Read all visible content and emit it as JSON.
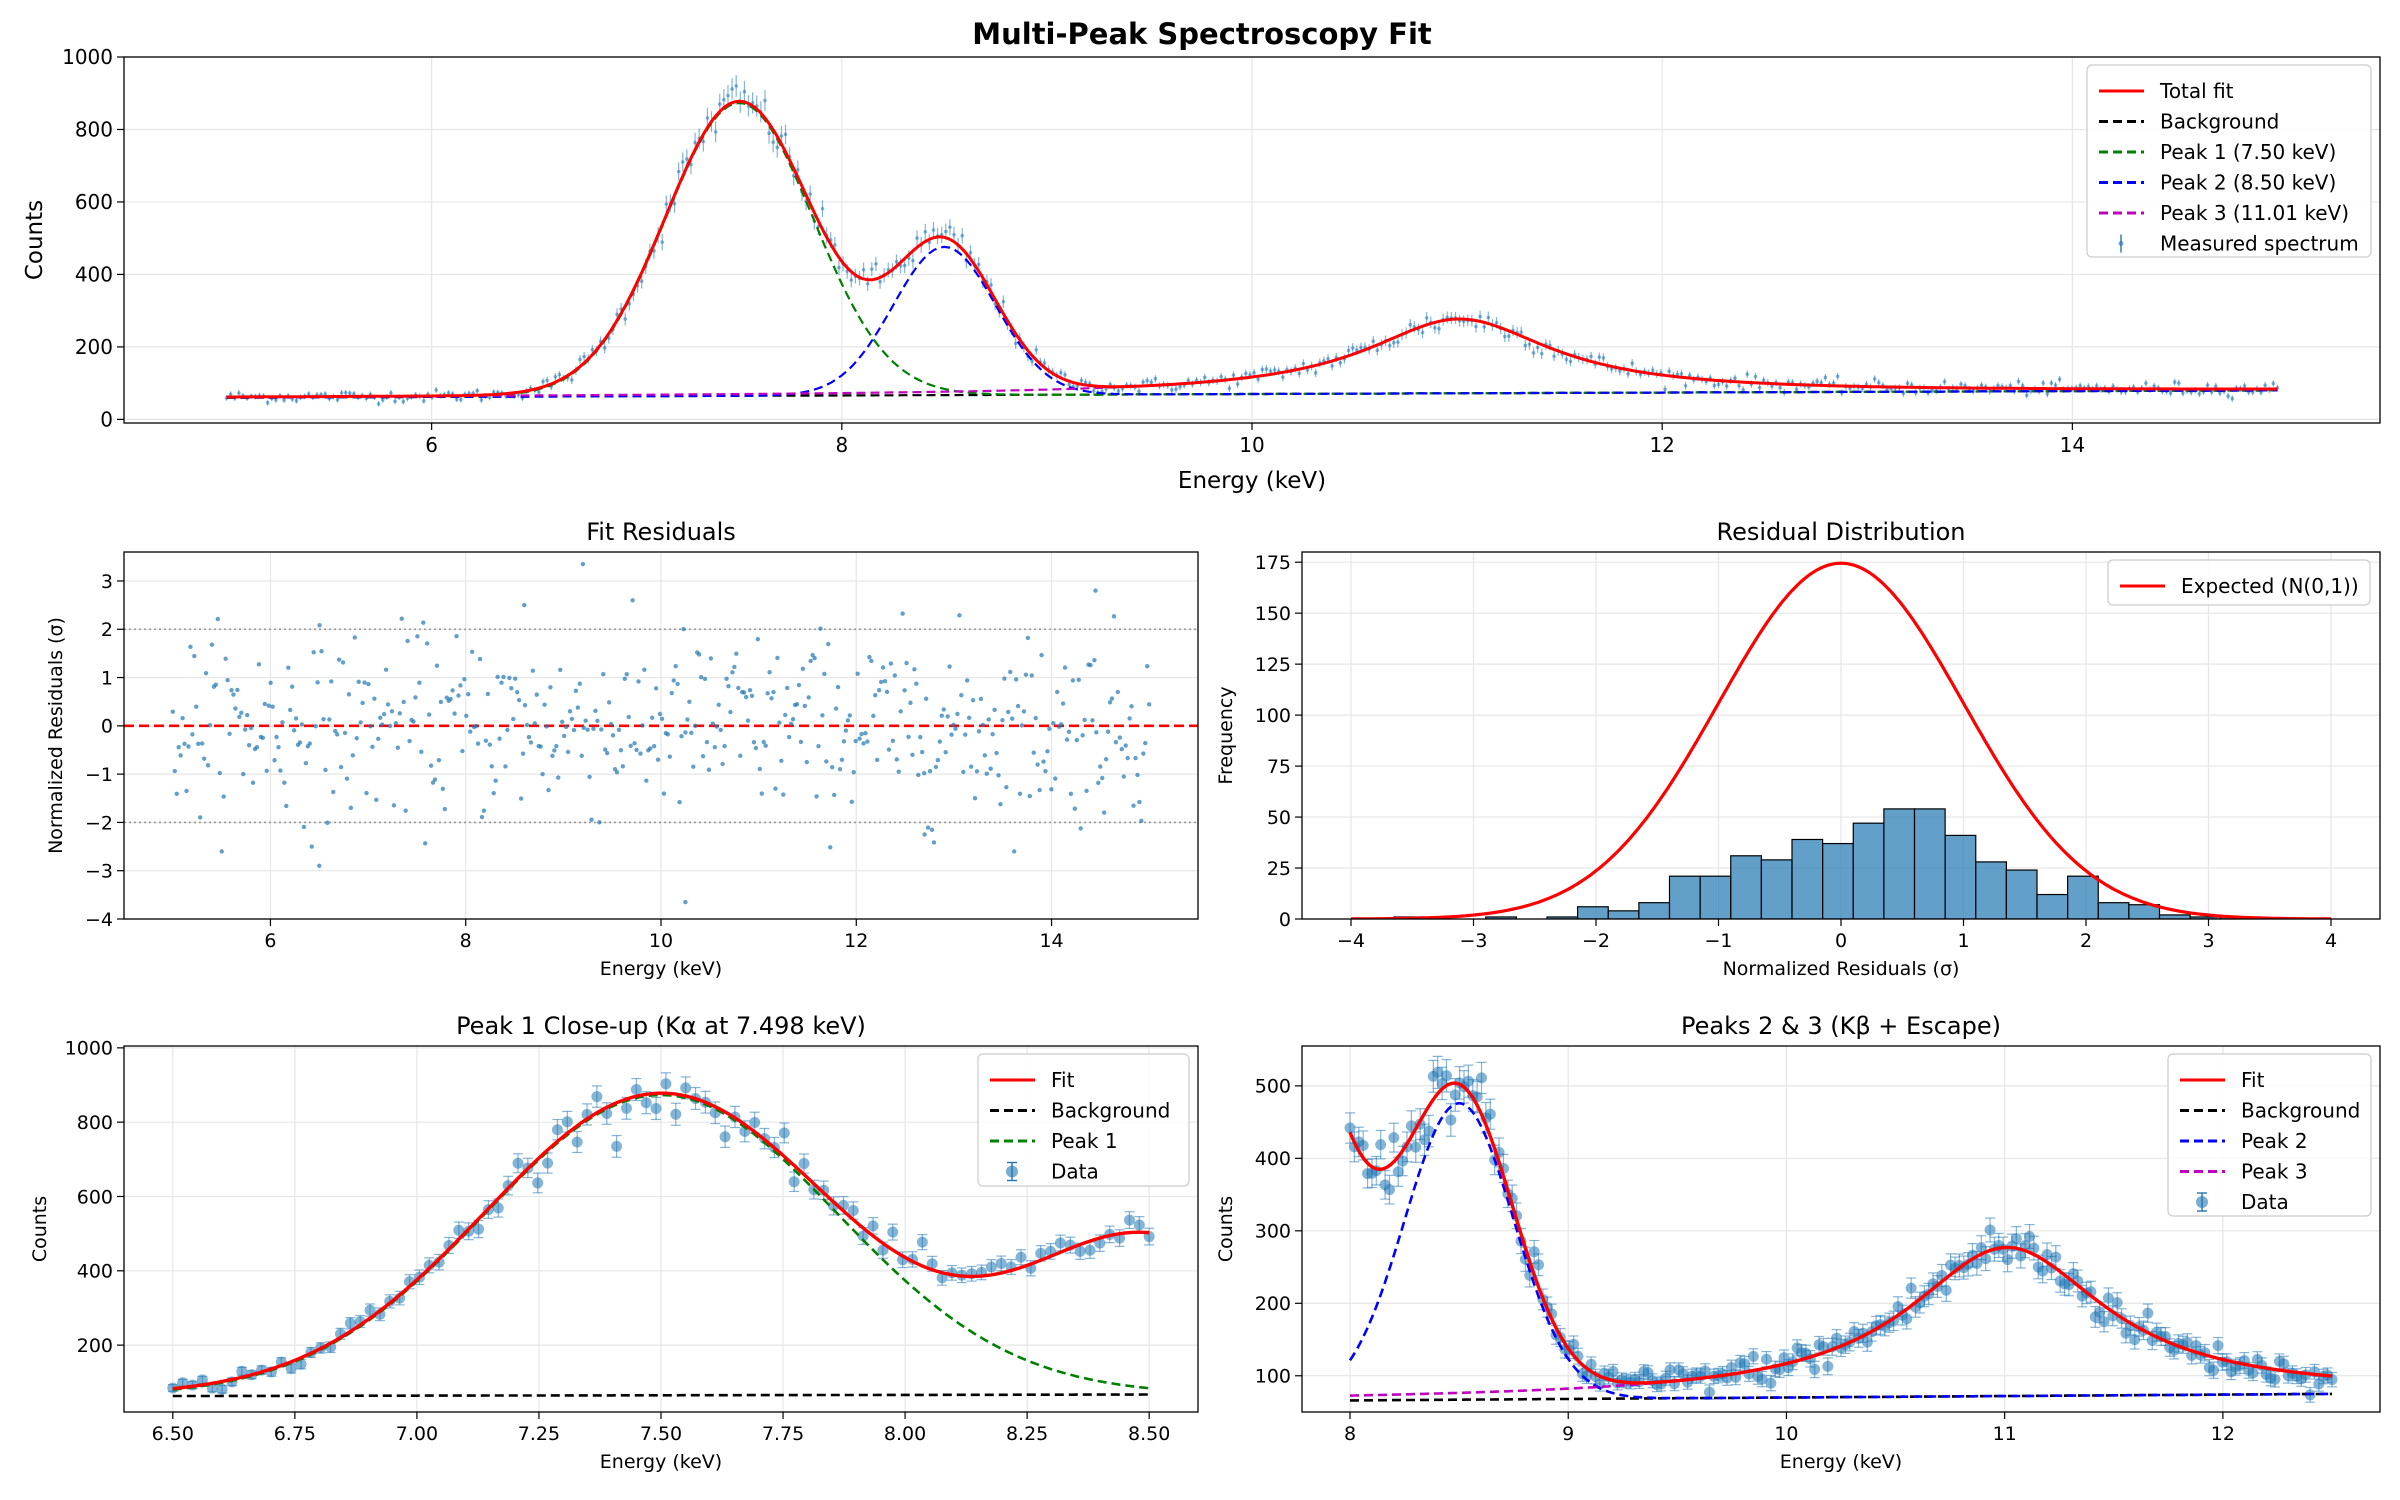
{
  "figure": {
    "suptitle": "Multi-Peak Spectroscopy Fit"
  },
  "colors": {
    "data": "#1f77b4",
    "fit": "#ff0000",
    "background": "#000000",
    "peak1": "#008000",
    "peak2": "#0000ff",
    "peak3": "#bf00bf",
    "grid": "#e6e6e6",
    "sigma_line": "#999999"
  },
  "chart_data": [
    {
      "id": "spectrum",
      "type": "line",
      "title": "",
      "xlabel": "Energy (keV)",
      "ylabel": "Counts",
      "xlim": [
        4.5,
        15.5
      ],
      "ylim": [
        -10,
        1000
      ],
      "xticks": [
        6,
        8,
        10,
        12,
        14
      ],
      "yticks": [
        0,
        200,
        400,
        600,
        800,
        1000
      ],
      "grid": true,
      "legend_position": "top-right",
      "model": {
        "background": {
          "at_5_keV": 60,
          "slope_per_keV": 2
        },
        "peaks": [
          {
            "name": "Peak 1 (7.50 keV)",
            "center_keV": 7.5,
            "amplitude": 808,
            "sigma_keV": 0.36
          },
          {
            "name": "Peak 2 (8.50 keV)",
            "center_keV": 8.5,
            "amplitude": 409,
            "sigma_keV": 0.25
          },
          {
            "name": "Peak 3 (11.01 keV)",
            "center_keV": 11.01,
            "amplitude": 205,
            "lorentz_halfwidth_keV": 0.55
          }
        ]
      },
      "series": [
        {
          "name": "Total fit",
          "style": "solid",
          "color": "#ff0000",
          "x": [
            5.0,
            6.0,
            6.5,
            7.0,
            7.25,
            7.5,
            7.75,
            8.0,
            8.1,
            8.25,
            8.5,
            8.75,
            9.0,
            9.5,
            10.0,
            10.5,
            11.0,
            11.5,
            12.0,
            13.0,
            14.0,
            15.0
          ],
          "y": [
            60,
            62,
            72,
            312,
            634,
            868,
            629,
            309,
            287,
            338,
            479,
            318,
            130,
            87,
            110,
            147,
            276,
            145,
            104,
            87,
            83,
            82
          ]
        },
        {
          "name": "Background",
          "style": "dashed",
          "color": "#000000",
          "x": [
            5.0,
            15.0
          ],
          "y": [
            60,
            80
          ]
        },
        {
          "name": "Peak 1 (7.50 keV)",
          "style": "dashed",
          "color": "#008000",
          "x": [
            5.0,
            6.5,
            7.0,
            7.5,
            8.0,
            8.5,
            9.0,
            15.0
          ],
          "y": [
            60,
            72,
            312,
            868,
            309,
            71,
            66,
            80
          ]
        },
        {
          "name": "Peak 2 (8.50 keV)",
          "style": "dashed",
          "color": "#0000ff",
          "x": [
            5.0,
            7.5,
            8.0,
            8.25,
            8.5,
            8.75,
            9.0,
            9.5,
            15.0
          ],
          "y": [
            60,
            65,
            121,
            317,
            476,
            317,
            123,
            69,
            80
          ]
        },
        {
          "name": "Peak 3 (11.01 keV)",
          "style": "dashed",
          "color": "#bf00bf",
          "x": [
            5.0,
            9.0,
            10.0,
            11.0,
            12.0,
            13.0,
            15.0
          ],
          "y": [
            61,
            75,
            110,
            274,
            104,
            85,
            81
          ]
        },
        {
          "name": "Measured spectrum",
          "style": "errorbar-points",
          "color": "#1f77b4",
          "x_range": [
            5.0,
            15.0
          ],
          "n_points": 500
        }
      ]
    },
    {
      "id": "residuals",
      "type": "scatter",
      "title": "Fit Residuals",
      "xlabel": "Energy (keV)",
      "ylabel": "Normalized Residuals (σ)",
      "xlim": [
        4.5,
        15.5
      ],
      "ylim": [
        -4,
        3.6
      ],
      "xticks": [
        6,
        8,
        10,
        12,
        14
      ],
      "yticks": [
        -4,
        -3,
        -2,
        -1,
        0,
        1,
        2,
        3
      ],
      "grid": true,
      "reference_lines": [
        {
          "y": 0,
          "style": "dashed",
          "color": "#ff0000"
        },
        {
          "y": 2,
          "style": "dotted",
          "color": "#999999"
        },
        {
          "y": -2,
          "style": "dotted",
          "color": "#999999"
        }
      ],
      "n_points": 500,
      "notable_points": [
        {
          "x": 9.2,
          "y": 3.35
        },
        {
          "x": 14.45,
          "y": 2.8
        },
        {
          "x": 10.25,
          "y": -3.65
        },
        {
          "x": 6.5,
          "y": -2.9
        },
        {
          "x": 8.6,
          "y": 2.5
        },
        {
          "x": 12.7,
          "y": -2.25
        }
      ]
    },
    {
      "id": "distribution",
      "type": "bar",
      "title": "Residual Distribution",
      "xlabel": "Normalized Residuals (σ)",
      "ylabel": "Frequency",
      "xlim": [
        -4.4,
        4.4
      ],
      "ylim": [
        0,
        180
      ],
      "xticks": [
        -4,
        -3,
        -2,
        -1,
        0,
        1,
        2,
        3,
        4
      ],
      "yticks": [
        0,
        25,
        50,
        75,
        100,
        125,
        150,
        175
      ],
      "grid": true,
      "legend_position": "top-right",
      "bin_edges": [
        -3.65,
        -3.4,
        -3.15,
        -2.9,
        -2.65,
        -2.4,
        -2.15,
        -1.9,
        -1.65,
        -1.4,
        -1.15,
        -0.9,
        -0.65,
        -0.4,
        -0.15,
        0.1,
        0.35,
        0.6,
        0.85,
        1.1,
        1.35,
        1.6,
        1.85,
        2.1,
        2.35,
        2.6,
        2.85,
        3.1,
        3.35
      ],
      "counts": [
        1,
        0,
        0,
        1,
        0,
        1,
        6,
        4,
        8,
        21,
        21,
        31,
        29,
        39,
        37,
        47,
        54,
        54,
        41,
        28,
        24,
        12,
        21,
        8,
        7,
        2,
        1,
        1
      ],
      "series": [
        {
          "name": "Expected (N(0,1))",
          "type": "line",
          "color": "#ff0000",
          "peak_value": 174.5,
          "mean": 0,
          "std": 1
        }
      ]
    },
    {
      "id": "peak1_zoom",
      "type": "line",
      "title": "Peak 1 Close-up (Kα at 7.498 keV)",
      "xlabel": "Energy (keV)",
      "ylabel": "Counts",
      "xlim": [
        6.4,
        8.6
      ],
      "ylim": [
        20,
        1005
      ],
      "xticks": [
        6.5,
        6.75,
        7.0,
        7.25,
        7.5,
        7.75,
        8.0,
        8.25,
        8.5
      ],
      "xtick_labels": [
        "6.50",
        "6.75",
        "7.00",
        "7.25",
        "7.50",
        "7.75",
        "8.00",
        "8.25",
        "8.50"
      ],
      "yticks": [
        200,
        400,
        600,
        800,
        1000
      ],
      "grid": true,
      "legend_position": "top-right",
      "series": [
        {
          "name": "Fit",
          "style": "solid",
          "color": "#ff0000"
        },
        {
          "name": "Background",
          "style": "dashed",
          "color": "#000000"
        },
        {
          "name": "Peak 1",
          "style": "dashed",
          "color": "#008000"
        },
        {
          "name": "Data",
          "style": "errorbar-points",
          "color": "#1f77b4",
          "x_range": [
            6.5,
            8.5
          ],
          "n_points": 100
        }
      ]
    },
    {
      "id": "peaks23_zoom",
      "type": "line",
      "title": "Peaks 2 & 3 (Kβ + Escape)",
      "xlabel": "Energy (keV)",
      "ylabel": "Counts",
      "xlim": [
        7.78,
        12.72
      ],
      "ylim": [
        50,
        555
      ],
      "xticks": [
        8,
        9,
        10,
        11,
        12
      ],
      "yticks": [
        100,
        200,
        300,
        400,
        500
      ],
      "grid": true,
      "legend_position": "top-right",
      "series": [
        {
          "name": "Fit",
          "style": "solid",
          "color": "#ff0000"
        },
        {
          "name": "Background",
          "style": "dashed",
          "color": "#000000"
        },
        {
          "name": "Peak 2",
          "style": "dashed",
          "color": "#0000ff"
        },
        {
          "name": "Peak 3",
          "style": "dashed",
          "color": "#bf00bf"
        },
        {
          "name": "Data",
          "style": "errorbar-points",
          "color": "#1f77b4",
          "x_range": [
            8.0,
            12.5
          ],
          "n_points": 225
        }
      ]
    }
  ]
}
